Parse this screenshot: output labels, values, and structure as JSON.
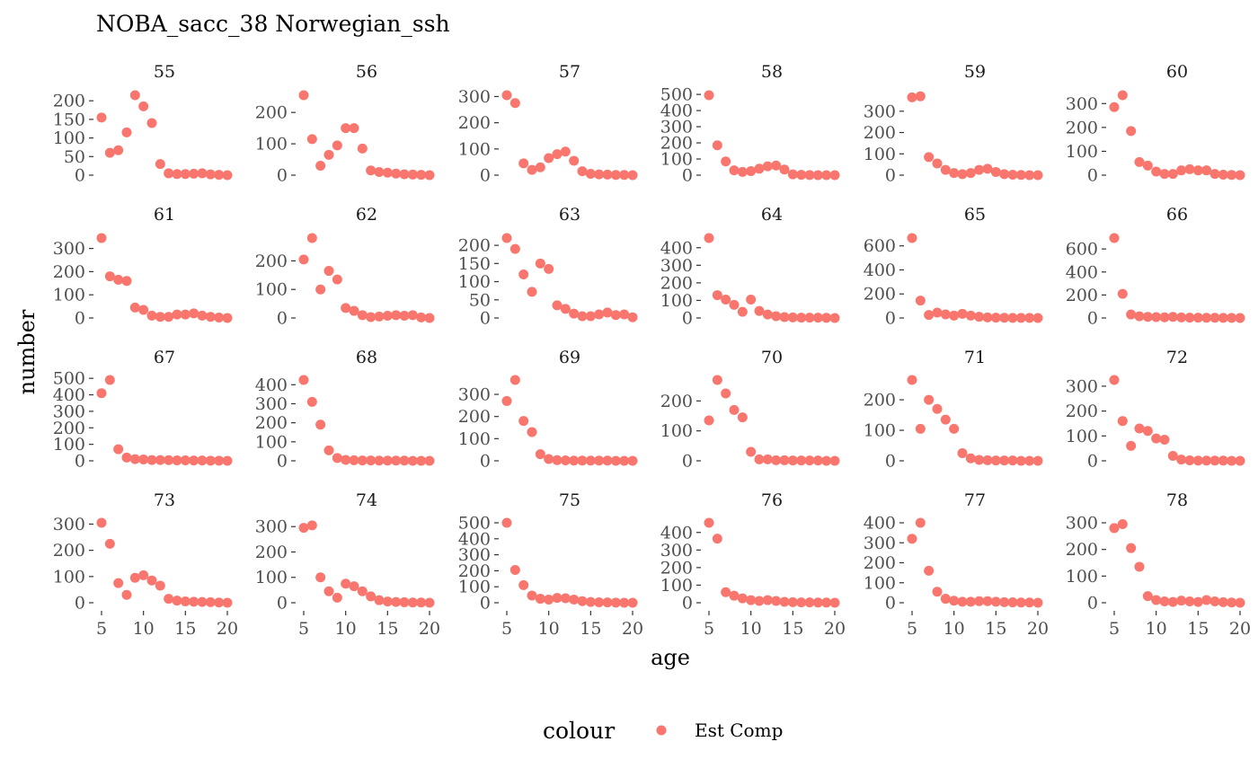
{
  "chart_data": {
    "type": "scatter",
    "title": "NOBA_sacc_38 Norwegian_ssh",
    "xlabel": "age",
    "ylabel": "number",
    "legend": {
      "title": "colour",
      "position": "bottom",
      "entries": [
        {
          "name": "Est Comp",
          "color": "#F8766D"
        }
      ]
    },
    "series_color": "#F8766D",
    "grid": false,
    "xlim": [
      5,
      20
    ],
    "x_ticks": [
      5,
      10,
      15,
      20
    ],
    "x": [
      5,
      6,
      7,
      8,
      9,
      10,
      11,
      12,
      13,
      14,
      15,
      16,
      17,
      18,
      19,
      20
    ],
    "panels": [
      {
        "label": "55",
        "yticks": [
          0,
          50,
          100,
          150,
          200
        ],
        "ylim": [
          0,
          215
        ],
        "values": [
          155,
          60,
          67,
          115,
          215,
          185,
          140,
          30,
          5,
          3,
          3,
          4,
          5,
          2,
          1,
          0
        ]
      },
      {
        "label": "56",
        "yticks": [
          0,
          100,
          200
        ],
        "ylim": [
          0,
          255
        ],
        "values": [
          255,
          115,
          30,
          65,
          95,
          150,
          150,
          85,
          15,
          10,
          8,
          5,
          3,
          2,
          1,
          0
        ]
      },
      {
        "label": "57",
        "yticks": [
          0,
          100,
          200,
          300
        ],
        "ylim": [
          0,
          305
        ],
        "values": [
          305,
          275,
          45,
          20,
          30,
          65,
          80,
          90,
          55,
          15,
          5,
          3,
          2,
          1,
          1,
          0
        ]
      },
      {
        "label": "58",
        "yticks": [
          0,
          100,
          200,
          300,
          400,
          500
        ],
        "ylim": [
          0,
          495
        ],
        "values": [
          495,
          185,
          85,
          30,
          20,
          25,
          40,
          55,
          60,
          35,
          5,
          2,
          1,
          0,
          0,
          0
        ]
      },
      {
        "label": "59",
        "yticks": [
          0,
          100,
          200,
          300
        ],
        "ylim": [
          0,
          375
        ],
        "values": [
          365,
          370,
          85,
          55,
          25,
          10,
          5,
          10,
          25,
          30,
          15,
          5,
          2,
          1,
          0,
          0
        ]
      },
      {
        "label": "60",
        "yticks": [
          0,
          100,
          200,
          300
        ],
        "ylim": [
          0,
          335
        ],
        "values": [
          285,
          335,
          185,
          55,
          40,
          15,
          5,
          5,
          20,
          25,
          20,
          20,
          5,
          2,
          1,
          0
        ]
      },
      {
        "label": "61",
        "yticks": [
          0,
          100,
          200,
          300
        ],
        "ylim": [
          0,
          345
        ],
        "values": [
          345,
          180,
          165,
          160,
          45,
          35,
          10,
          5,
          5,
          15,
          15,
          20,
          10,
          5,
          2,
          0
        ]
      },
      {
        "label": "62",
        "yticks": [
          0,
          100,
          200
        ],
        "ylim": [
          0,
          280
        ],
        "values": [
          205,
          280,
          100,
          165,
          135,
          35,
          25,
          10,
          3,
          5,
          8,
          10,
          8,
          10,
          2,
          0
        ]
      },
      {
        "label": "63",
        "yticks": [
          0,
          50,
          100,
          150,
          200
        ],
        "ylim": [
          0,
          220
        ],
        "values": [
          220,
          190,
          120,
          72,
          150,
          135,
          35,
          25,
          12,
          5,
          5,
          10,
          15,
          8,
          10,
          2
        ]
      },
      {
        "label": "64",
        "yticks": [
          0,
          100,
          200,
          300,
          400
        ],
        "ylim": [
          0,
          455
        ],
        "values": [
          455,
          130,
          105,
          75,
          35,
          105,
          40,
          20,
          10,
          5,
          3,
          2,
          2,
          2,
          1,
          0
        ]
      },
      {
        "label": "65",
        "yticks": [
          0,
          200,
          400,
          600
        ],
        "ylim": [
          0,
          665
        ],
        "values": [
          665,
          145,
          25,
          45,
          30,
          20,
          35,
          20,
          10,
          5,
          3,
          2,
          1,
          1,
          1,
          0
        ]
      },
      {
        "label": "66",
        "yticks": [
          0,
          200,
          400,
          600
        ],
        "ylim": [
          0,
          695
        ],
        "values": [
          695,
          210,
          30,
          15,
          10,
          8,
          6,
          10,
          5,
          3,
          3,
          2,
          2,
          1,
          1,
          0
        ]
      },
      {
        "label": "67",
        "yticks": [
          0,
          100,
          200,
          300,
          400,
          500
        ],
        "ylim": [
          0,
          490
        ],
        "values": [
          410,
          490,
          70,
          20,
          10,
          8,
          5,
          5,
          4,
          3,
          3,
          2,
          2,
          1,
          1,
          0
        ]
      },
      {
        "label": "68",
        "yticks": [
          0,
          100,
          200,
          300,
          400
        ],
        "ylim": [
          0,
          425
        ],
        "values": [
          425,
          310,
          190,
          55,
          15,
          5,
          3,
          2,
          2,
          1,
          1,
          1,
          1,
          0,
          0,
          0
        ]
      },
      {
        "label": "69",
        "yticks": [
          0,
          100,
          200,
          300
        ],
        "ylim": [
          0,
          365
        ],
        "values": [
          270,
          365,
          180,
          130,
          30,
          8,
          3,
          2,
          1,
          1,
          1,
          1,
          1,
          0,
          0,
          0
        ]
      },
      {
        "label": "70",
        "yticks": [
          0,
          100,
          200
        ],
        "ylim": [
          0,
          270
        ],
        "values": [
          135,
          270,
          225,
          170,
          145,
          30,
          5,
          5,
          2,
          2,
          1,
          1,
          1,
          1,
          0,
          0
        ]
      },
      {
        "label": "71",
        "yticks": [
          0,
          100,
          200
        ],
        "ylim": [
          0,
          265
        ],
        "values": [
          265,
          105,
          200,
          170,
          135,
          105,
          25,
          8,
          3,
          2,
          1,
          1,
          1,
          0,
          0,
          0
        ]
      },
      {
        "label": "72",
        "yticks": [
          0,
          100,
          200,
          300
        ],
        "ylim": [
          0,
          325
        ],
        "values": [
          325,
          160,
          60,
          130,
          120,
          90,
          85,
          20,
          5,
          2,
          1,
          1,
          1,
          1,
          0,
          0
        ]
      },
      {
        "label": "73",
        "yticks": [
          0,
          100,
          200,
          300
        ],
        "ylim": [
          0,
          305
        ],
        "values": [
          305,
          225,
          75,
          30,
          95,
          105,
          85,
          65,
          15,
          8,
          5,
          4,
          3,
          2,
          1,
          0
        ]
      },
      {
        "label": "74",
        "yticks": [
          0,
          100,
          200,
          300
        ],
        "ylim": [
          0,
          315
        ],
        "values": [
          295,
          305,
          100,
          45,
          20,
          75,
          65,
          45,
          25,
          10,
          5,
          3,
          2,
          1,
          1,
          0
        ]
      },
      {
        "label": "75",
        "yticks": [
          0,
          100,
          200,
          300,
          400,
          500
        ],
        "ylim": [
          0,
          500
        ],
        "values": [
          500,
          205,
          110,
          45,
          25,
          20,
          30,
          28,
          20,
          10,
          5,
          3,
          2,
          1,
          0,
          0
        ]
      },
      {
        "label": "76",
        "yticks": [
          0,
          100,
          200,
          300,
          400
        ],
        "ylim": [
          0,
          455
        ],
        "values": [
          455,
          365,
          60,
          40,
          25,
          15,
          10,
          15,
          10,
          5,
          3,
          2,
          2,
          1,
          1,
          0
        ]
      },
      {
        "label": "77",
        "yticks": [
          0,
          100,
          200,
          300,
          400
        ],
        "ylim": [
          0,
          400
        ],
        "values": [
          320,
          400,
          160,
          55,
          20,
          10,
          5,
          5,
          8,
          8,
          5,
          3,
          2,
          1,
          1,
          0
        ]
      },
      {
        "label": "78",
        "yticks": [
          0,
          100,
          200,
          300
        ],
        "ylim": [
          0,
          300
        ],
        "values": [
          280,
          295,
          205,
          135,
          25,
          10,
          5,
          3,
          8,
          5,
          3,
          10,
          5,
          2,
          1,
          0
        ]
      }
    ]
  }
}
